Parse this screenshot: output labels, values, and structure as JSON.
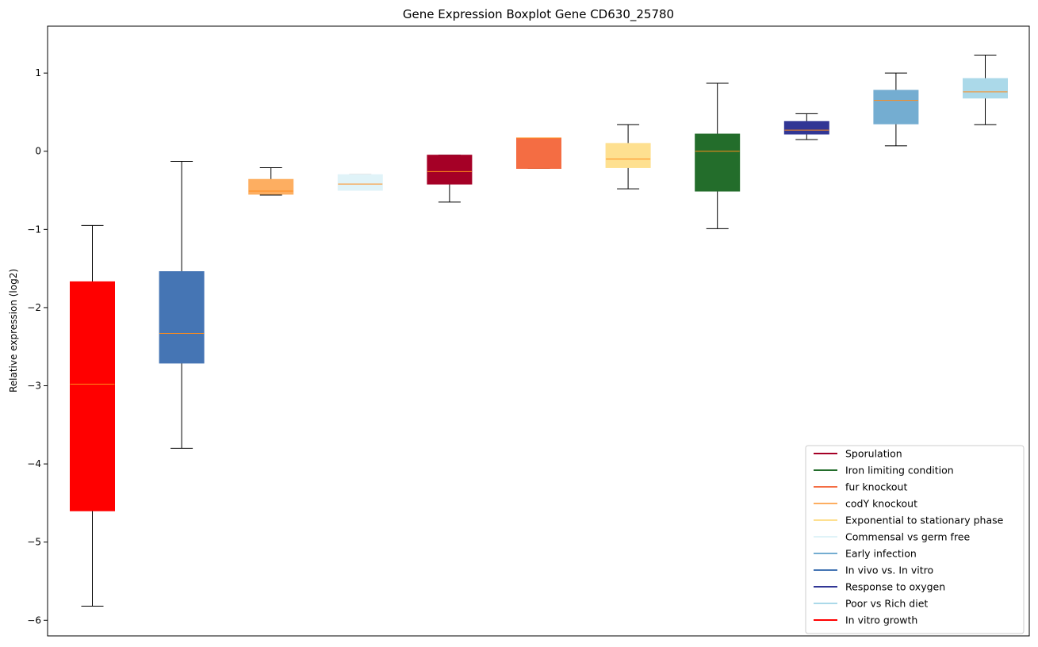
{
  "chart_data": {
    "type": "boxplot",
    "title": "Gene Expression Boxplot Gene CD630_25780",
    "xlabel": "",
    "ylabel": "Relative expression (log2)",
    "ylim": [
      -6.2,
      1.6
    ],
    "yticks": [
      1,
      0,
      -1,
      -2,
      -3,
      -4,
      -5,
      -6
    ],
    "grid": false,
    "legend_position": "lower-right",
    "median_color": "#ff8c1a",
    "whisker_color": "#000000",
    "boxes": [
      {
        "name": "In vitro growth",
        "color": "#ff0000",
        "whislo": -5.82,
        "q1": -4.6,
        "med": -2.98,
        "q3": -1.67,
        "whishi": -0.95
      },
      {
        "name": "In vivo vs. In vitro",
        "color": "#4575b4",
        "whislo": -3.8,
        "q1": -2.71,
        "med": -2.33,
        "q3": -1.54,
        "whishi": -0.13
      },
      {
        "name": "codY knockout",
        "color": "#fdae61",
        "whislo": -0.56,
        "q1": -0.55,
        "med": -0.51,
        "q3": -0.36,
        "whishi": -0.21
      },
      {
        "name": "Commensal vs germ free",
        "color": "#e0f3f8",
        "whislo": -0.5,
        "q1": -0.5,
        "med": -0.42,
        "q3": -0.3,
        "whishi": -0.3
      },
      {
        "name": "Sporulation",
        "color": "#a50026",
        "whislo": -0.65,
        "q1": -0.42,
        "med": -0.26,
        "q3": -0.05,
        "whishi": -0.05
      },
      {
        "name": "fur knockout",
        "color": "#f46d43",
        "whislo": -0.22,
        "q1": -0.22,
        "med": 0.17,
        "q3": 0.17,
        "whishi": 0.17
      },
      {
        "name": "Exponential to stationary phase",
        "color": "#fee090",
        "whislo": -0.48,
        "q1": -0.21,
        "med": -0.1,
        "q3": 0.1,
        "whishi": 0.34
      },
      {
        "name": "Iron limiting condition",
        "color": "#236d2b",
        "whislo": -0.99,
        "q1": -0.51,
        "med": 0.0,
        "q3": 0.22,
        "whishi": 0.87
      },
      {
        "name": "Response to oxygen",
        "color": "#313695",
        "whislo": 0.15,
        "q1": 0.22,
        "med": 0.27,
        "q3": 0.38,
        "whishi": 0.48
      },
      {
        "name": "Early infection",
        "color": "#74add1",
        "whislo": 0.07,
        "q1": 0.35,
        "med": 0.65,
        "q3": 0.78,
        "whishi": 1.0
      },
      {
        "name": "Poor vs Rich diet",
        "color": "#abd9e9",
        "whislo": 0.34,
        "q1": 0.68,
        "med": 0.76,
        "q3": 0.93,
        "whishi": 1.23
      }
    ],
    "legend": [
      {
        "label": "Sporulation",
        "color": "#a50026"
      },
      {
        "label": "Iron limiting condition",
        "color": "#236d2b"
      },
      {
        "label": "fur knockout",
        "color": "#f46d43"
      },
      {
        "label": "codY knockout",
        "color": "#fdae61"
      },
      {
        "label": "Exponential to stationary phase",
        "color": "#fee090"
      },
      {
        "label": "Commensal vs germ free",
        "color": "#e0f3f8"
      },
      {
        "label": "Early infection",
        "color": "#74add1"
      },
      {
        "label": "In vivo vs. In vitro",
        "color": "#4575b4"
      },
      {
        "label": "Response to oxygen",
        "color": "#313695"
      },
      {
        "label": "Poor vs Rich diet",
        "color": "#abd9e9"
      },
      {
        "label": "In vitro growth",
        "color": "#ff0000"
      }
    ]
  }
}
